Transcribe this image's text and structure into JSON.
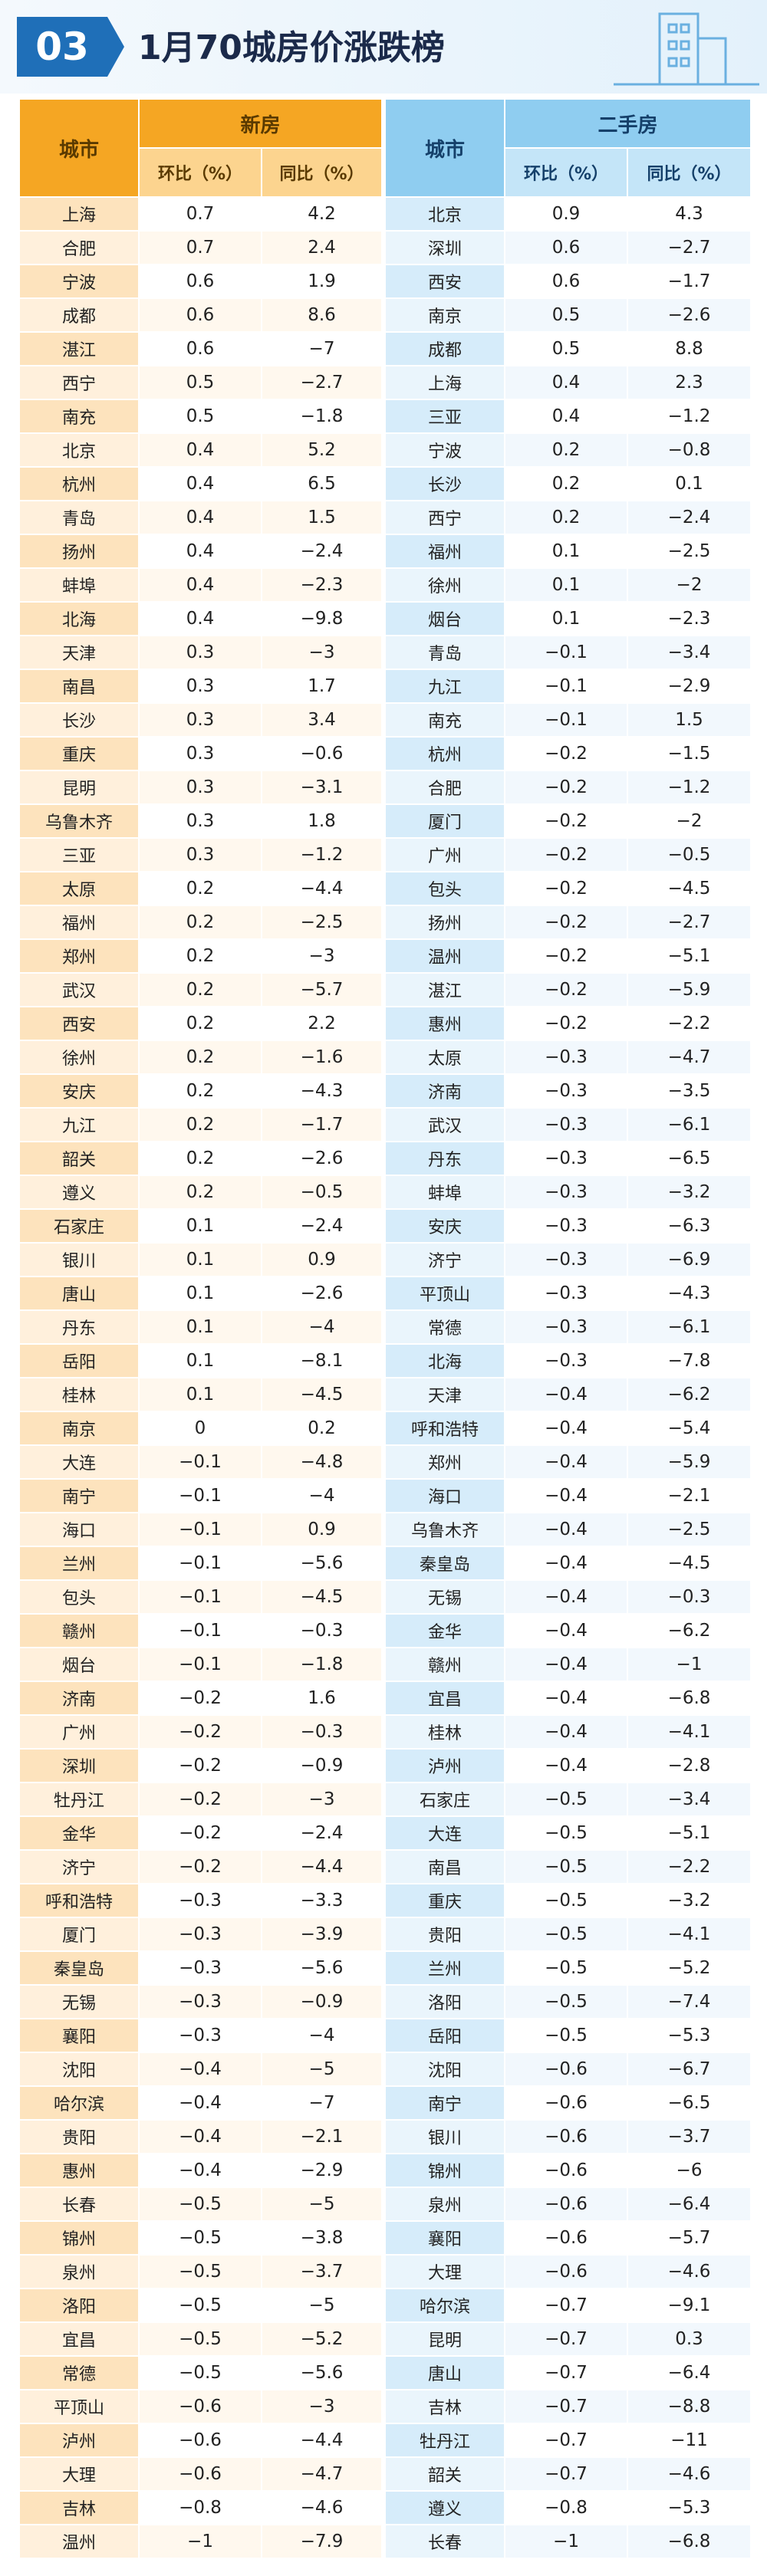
{
  "header": {
    "number": "03",
    "title": "1月70城房价涨跌榜"
  },
  "table": {
    "new_home": {
      "city_header": "城市",
      "group": "新房",
      "columns": [
        "环比（%）",
        "同比（%）"
      ],
      "rows": [
        [
          "上海",
          "0.7",
          "4.2"
        ],
        [
          "合肥",
          "0.7",
          "2.4"
        ],
        [
          "宁波",
          "0.6",
          "1.9"
        ],
        [
          "成都",
          "0.6",
          "8.6"
        ],
        [
          "湛江",
          "0.6",
          "−7"
        ],
        [
          "西宁",
          "0.5",
          "−2.7"
        ],
        [
          "南充",
          "0.5",
          "−1.8"
        ],
        [
          "北京",
          "0.4",
          "5.2"
        ],
        [
          "杭州",
          "0.4",
          "6.5"
        ],
        [
          "青岛",
          "0.4",
          "1.5"
        ],
        [
          "扬州",
          "0.4",
          "−2.4"
        ],
        [
          "蚌埠",
          "0.4",
          "−2.3"
        ],
        [
          "北海",
          "0.4",
          "−9.8"
        ],
        [
          "天津",
          "0.3",
          "−3"
        ],
        [
          "南昌",
          "0.3",
          "1.7"
        ],
        [
          "长沙",
          "0.3",
          "3.4"
        ],
        [
          "重庆",
          "0.3",
          "−0.6"
        ],
        [
          "昆明",
          "0.3",
          "−3.1"
        ],
        [
          "乌鲁木齐",
          "0.3",
          "1.8"
        ],
        [
          "三亚",
          "0.3",
          "−1.2"
        ],
        [
          "太原",
          "0.2",
          "−4.4"
        ],
        [
          "福州",
          "0.2",
          "−2.5"
        ],
        [
          "郑州",
          "0.2",
          "−3"
        ],
        [
          "武汉",
          "0.2",
          "−5.7"
        ],
        [
          "西安",
          "0.2",
          "2.2"
        ],
        [
          "徐州",
          "0.2",
          "−1.6"
        ],
        [
          "安庆",
          "0.2",
          "−4.3"
        ],
        [
          "九江",
          "0.2",
          "−1.7"
        ],
        [
          "韶关",
          "0.2",
          "−2.6"
        ],
        [
          "遵义",
          "0.2",
          "−0.5"
        ],
        [
          "石家庄",
          "0.1",
          "−2.4"
        ],
        [
          "银川",
          "0.1",
          "0.9"
        ],
        [
          "唐山",
          "0.1",
          "−2.6"
        ],
        [
          "丹东",
          "0.1",
          "−4"
        ],
        [
          "岳阳",
          "0.1",
          "−8.1"
        ],
        [
          "桂林",
          "0.1",
          "−4.5"
        ],
        [
          "南京",
          "0",
          "0.2"
        ],
        [
          "大连",
          "−0.1",
          "−4.8"
        ],
        [
          "南宁",
          "−0.1",
          "−4"
        ],
        [
          "海口",
          "−0.1",
          "0.9"
        ],
        [
          "兰州",
          "−0.1",
          "−5.6"
        ],
        [
          "包头",
          "−0.1",
          "−4.5"
        ],
        [
          "赣州",
          "−0.1",
          "−0.3"
        ],
        [
          "烟台",
          "−0.1",
          "−1.8"
        ],
        [
          "济南",
          "−0.2",
          "1.6"
        ],
        [
          "广州",
          "−0.2",
          "−0.3"
        ],
        [
          "深圳",
          "−0.2",
          "−0.9"
        ],
        [
          "牡丹江",
          "−0.2",
          "−3"
        ],
        [
          "金华",
          "−0.2",
          "−2.4"
        ],
        [
          "济宁",
          "−0.2",
          "−4.4"
        ],
        [
          "呼和浩特",
          "−0.3",
          "−3.3"
        ],
        [
          "厦门",
          "−0.3",
          "−3.9"
        ],
        [
          "秦皇岛",
          "−0.3",
          "−5.6"
        ],
        [
          "无锡",
          "−0.3",
          "−0.9"
        ],
        [
          "襄阳",
          "−0.3",
          "−4"
        ],
        [
          "沈阳",
          "−0.4",
          "−5"
        ],
        [
          "哈尔滨",
          "−0.4",
          "−7"
        ],
        [
          "贵阳",
          "−0.4",
          "−2.1"
        ],
        [
          "惠州",
          "−0.4",
          "−2.9"
        ],
        [
          "长春",
          "−0.5",
          "−5"
        ],
        [
          "锦州",
          "−0.5",
          "−3.8"
        ],
        [
          "泉州",
          "−0.5",
          "−3.7"
        ],
        [
          "洛阳",
          "−0.5",
          "−5"
        ],
        [
          "宜昌",
          "−0.5",
          "−5.2"
        ],
        [
          "常德",
          "−0.5",
          "−5.6"
        ],
        [
          "平顶山",
          "−0.6",
          "−3"
        ],
        [
          "泸州",
          "−0.6",
          "−4.4"
        ],
        [
          "大理",
          "−0.6",
          "−4.7"
        ],
        [
          "吉林",
          "−0.8",
          "−4.6"
        ],
        [
          "温州",
          "−1",
          "−7.9"
        ]
      ]
    },
    "second_hand": {
      "city_header": "城市",
      "group": "二手房",
      "columns": [
        "环比（%）",
        "同比（%）"
      ],
      "rows": [
        [
          "北京",
          "0.9",
          "4.3"
        ],
        [
          "深圳",
          "0.6",
          "−2.7"
        ],
        [
          "西安",
          "0.6",
          "−1.7"
        ],
        [
          "南京",
          "0.5",
          "−2.6"
        ],
        [
          "成都",
          "0.5",
          "8.8"
        ],
        [
          "上海",
          "0.4",
          "2.3"
        ],
        [
          "三亚",
          "0.4",
          "−1.2"
        ],
        [
          "宁波",
          "0.2",
          "−0.8"
        ],
        [
          "长沙",
          "0.2",
          "0.1"
        ],
        [
          "西宁",
          "0.2",
          "−2.4"
        ],
        [
          "福州",
          "0.1",
          "−2.5"
        ],
        [
          "徐州",
          "0.1",
          "−2"
        ],
        [
          "烟台",
          "0.1",
          "−2.3"
        ],
        [
          "青岛",
          "−0.1",
          "−3.4"
        ],
        [
          "九江",
          "−0.1",
          "−2.9"
        ],
        [
          "南充",
          "−0.1",
          "1.5"
        ],
        [
          "杭州",
          "−0.2",
          "−1.5"
        ],
        [
          "合肥",
          "−0.2",
          "−1.2"
        ],
        [
          "厦门",
          "−0.2",
          "−2"
        ],
        [
          "广州",
          "−0.2",
          "−0.5"
        ],
        [
          "包头",
          "−0.2",
          "−4.5"
        ],
        [
          "扬州",
          "−0.2",
          "−2.7"
        ],
        [
          "温州",
          "−0.2",
          "−5.1"
        ],
        [
          "湛江",
          "−0.2",
          "−5.9"
        ],
        [
          "惠州",
          "−0.2",
          "−2.2"
        ],
        [
          "太原",
          "−0.3",
          "−4.7"
        ],
        [
          "济南",
          "−0.3",
          "−3.5"
        ],
        [
          "武汉",
          "−0.3",
          "−6.1"
        ],
        [
          "丹东",
          "−0.3",
          "−6.5"
        ],
        [
          "蚌埠",
          "−0.3",
          "−3.2"
        ],
        [
          "安庆",
          "−0.3",
          "−6.3"
        ],
        [
          "济宁",
          "−0.3",
          "−6.9"
        ],
        [
          "平顶山",
          "−0.3",
          "−4.3"
        ],
        [
          "常德",
          "−0.3",
          "−6.1"
        ],
        [
          "北海",
          "−0.3",
          "−7.8"
        ],
        [
          "天津",
          "−0.4",
          "−6.2"
        ],
        [
          "呼和浩特",
          "−0.4",
          "−5.4"
        ],
        [
          "郑州",
          "−0.4",
          "−5.9"
        ],
        [
          "海口",
          "−0.4",
          "−2.1"
        ],
        [
          "乌鲁木齐",
          "−0.4",
          "−2.5"
        ],
        [
          "秦皇岛",
          "−0.4",
          "−4.5"
        ],
        [
          "无锡",
          "−0.4",
          "−0.3"
        ],
        [
          "金华",
          "−0.4",
          "−6.2"
        ],
        [
          "赣州",
          "−0.4",
          "−1"
        ],
        [
          "宜昌",
          "−0.4",
          "−6.8"
        ],
        [
          "桂林",
          "−0.4",
          "−4.1"
        ],
        [
          "泸州",
          "−0.4",
          "−2.8"
        ],
        [
          "石家庄",
          "−0.5",
          "−3.4"
        ],
        [
          "大连",
          "−0.5",
          "−5.1"
        ],
        [
          "南昌",
          "−0.5",
          "−2.2"
        ],
        [
          "重庆",
          "−0.5",
          "−3.2"
        ],
        [
          "贵阳",
          "−0.5",
          "−4.1"
        ],
        [
          "兰州",
          "−0.5",
          "−5.2"
        ],
        [
          "洛阳",
          "−0.5",
          "−7.4"
        ],
        [
          "岳阳",
          "−0.5",
          "−5.3"
        ],
        [
          "沈阳",
          "−0.6",
          "−6.7"
        ],
        [
          "南宁",
          "−0.6",
          "−6.5"
        ],
        [
          "银川",
          "−0.6",
          "−3.7"
        ],
        [
          "锦州",
          "−0.6",
          "−6"
        ],
        [
          "泉州",
          "−0.6",
          "−6.4"
        ],
        [
          "襄阳",
          "−0.6",
          "−5.7"
        ],
        [
          "大理",
          "−0.6",
          "−4.6"
        ],
        [
          "哈尔滨",
          "−0.7",
          "−9.1"
        ],
        [
          "昆明",
          "−0.7",
          "0.3"
        ],
        [
          "唐山",
          "−0.7",
          "−6.4"
        ],
        [
          "吉林",
          "−0.7",
          "−8.8"
        ],
        [
          "牡丹江",
          "−0.7",
          "−11"
        ],
        [
          "韶关",
          "−0.7",
          "−4.6"
        ],
        [
          "遵义",
          "−0.8",
          "−5.3"
        ],
        [
          "长春",
          "−1",
          "−6.8"
        ]
      ]
    }
  }
}
